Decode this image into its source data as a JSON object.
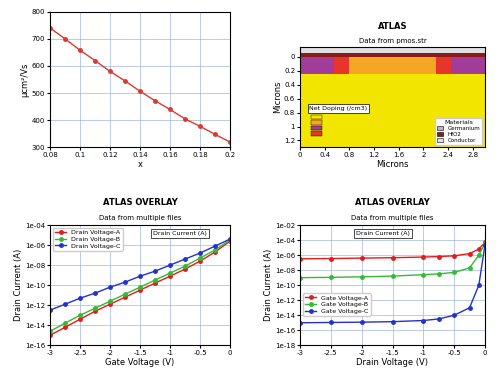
{
  "chart_data": [
    {
      "type": "line",
      "xlabel": "x",
      "ylabel": "μcm²/Vs",
      "x": [
        0.08,
        0.09,
        0.1,
        0.11,
        0.12,
        0.13,
        0.14,
        0.15,
        0.16,
        0.17,
        0.18,
        0.19,
        0.2
      ],
      "values": [
        740,
        700,
        658,
        620,
        580,
        545,
        507,
        472,
        440,
        405,
        378,
        348,
        320
      ],
      "color": "#d93a32",
      "marker": "o",
      "line_style": "solid",
      "xlim": [
        0.08,
        0.2
      ],
      "xticks": [
        0.08,
        0.1,
        0.12,
        0.14,
        0.16,
        0.18,
        0.2
      ],
      "ylim": [
        300,
        800
      ],
      "yticks": [
        300,
        400,
        500,
        600,
        700,
        800
      ],
      "grid": true
    },
    {
      "type": "structure",
      "title": "ATLAS",
      "subtitle": "Data from pmos.str",
      "xlabel": "Microns",
      "ylabel": "Microns",
      "xlim": [
        0,
        3
      ],
      "xticks": [
        0,
        0.4,
        0.8,
        1.2,
        1.6,
        2,
        2.4,
        2.8
      ],
      "ylim": [
        1.3,
        -0.15
      ],
      "yticks": [
        0,
        0.2,
        0.4,
        0.6,
        0.8,
        1,
        1.2
      ],
      "regions": [
        {
          "x": [
            0,
            3
          ],
          "y": [
            0.25,
            1.3
          ],
          "color": "#f2e600"
        },
        {
          "x": [
            0.8,
            2.2
          ],
          "y": [
            0,
            0.25
          ],
          "color": "#f5a623"
        },
        {
          "x": [
            0,
            0.55
          ],
          "y": [
            0,
            0.25
          ],
          "color": "#a23c9a"
        },
        {
          "x": [
            2.45,
            3
          ],
          "y": [
            0,
            0.25
          ],
          "color": "#a23c9a"
        },
        {
          "x": [
            0.55,
            0.8
          ],
          "y": [
            -0.03,
            0.25
          ],
          "color": "#e8352b"
        },
        {
          "x": [
            2.2,
            2.45
          ],
          "y": [
            -0.03,
            0.25
          ],
          "color": "#e8352b"
        },
        {
          "x": [
            0,
            3
          ],
          "y": [
            -0.06,
            0
          ],
          "color": "#8b1a1a"
        },
        {
          "x": [
            0,
            3
          ],
          "y": [
            -0.15,
            -0.06
          ],
          "color": "#e0e0e0"
        }
      ],
      "doping": {
        "title": "Net Doping (/cm3)"
      },
      "materials": {
        "title": "Materials",
        "entries": [
          {
            "name": "Germanium",
            "color": "#b8b8b8"
          },
          {
            "name": "HfO2",
            "color": "#8b1a1a"
          },
          {
            "name": "Conductor",
            "color": "#e0e0e0"
          }
        ]
      },
      "legend": "lower right",
      "grid": false
    },
    {
      "type": "line",
      "title": "ATLAS OVERLAY",
      "subtitle": "Data from multiple files",
      "xlabel": "Gate Voltage (V)",
      "ylabel": "Drain Current (A)",
      "annotation": "Drain Current (A)",
      "log": "y",
      "grid": true,
      "legend": "upper left",
      "line_style": "solid",
      "x": [
        -3,
        -2.75,
        -2.5,
        -2.25,
        -2,
        -1.75,
        -1.5,
        -1.25,
        -1,
        -0.75,
        -0.5,
        -0.25,
        0
      ],
      "series": [
        {
          "name": "Drain Voltage-A",
          "color": "#e41a1c",
          "marker": "o",
          "values": [
            1e-15,
            6.3e-15,
            4e-14,
            2.5e-13,
            1.26e-12,
            6.3e-12,
            3.2e-11,
            1.6e-10,
            7.9e-10,
            4e-09,
            2.5e-08,
            2e-07,
            2.5e-06
          ]
        },
        {
          "name": "Drain Voltage-B",
          "color": "#33bb33",
          "marker": "o",
          "values": [
            2.5e-15,
            1.6e-14,
            1e-13,
            5e-13,
            2.5e-12,
            1.26e-11,
            6.3e-11,
            3.2e-10,
            1.6e-09,
            7.9e-09,
            5e-08,
            3.2e-07,
            3.2e-06
          ]
        },
        {
          "name": "Drain Voltage-C",
          "color": "#2233cc",
          "marker": "o",
          "values": [
            3.2e-13,
            1.26e-12,
            5e-12,
            1.6e-11,
            6.3e-11,
            2e-10,
            7.9e-10,
            2.5e-09,
            1e-08,
            4e-08,
            1.6e-07,
            7.9e-07,
            4e-06
          ]
        }
      ],
      "xlim": [
        -3,
        0
      ],
      "xticks": [
        -3,
        -2.5,
        -2,
        -1.5,
        -1,
        -0.5,
        0
      ],
      "ylim": [
        1e-16,
        0.0001
      ],
      "yticks": [
        {
          "value": 1e-16,
          "label": "1e-16"
        },
        {
          "value": 1e-14,
          "label": "1e-14"
        },
        {
          "value": 1e-12,
          "label": "1e-12"
        },
        {
          "value": 1e-10,
          "label": "1e-10"
        },
        {
          "value": 1e-08,
          "label": "1e-08"
        },
        {
          "value": 1e-06,
          "label": "1e-06"
        },
        {
          "value": 0.0001,
          "label": "1e-04"
        }
      ]
    },
    {
      "type": "line",
      "title": "ATLAS OVERLAY",
      "subtitle": "Data from multiple files",
      "xlabel": "Drain Voltage (V)",
      "ylabel": "Drain Current (A)",
      "annotation": "Drain Current (A)",
      "log": "y",
      "grid": true,
      "legend": "lower left",
      "line_style": "solid",
      "x": [
        -3,
        -2.5,
        -2,
        -1.5,
        -1,
        -0.75,
        -0.5,
        -0.25,
        -0.1,
        0
      ],
      "series": [
        {
          "name": "Gate Voltage-A",
          "color": "#e41a1c",
          "marker": "o",
          "values": [
            3.2e-07,
            3.5e-07,
            4e-07,
            4.5e-07,
            5.5e-07,
            6.5e-07,
            8e-07,
            1.6e-06,
            6.3e-06,
            5e-05
          ]
        },
        {
          "name": "Gate Voltage-B",
          "color": "#33bb33",
          "marker": "o",
          "values": [
            1e-09,
            1.1e-09,
            1.3e-09,
            1.6e-09,
            2.5e-09,
            3.2e-09,
            5e-09,
            2e-08,
            1e-06,
            4e-05
          ]
        },
        {
          "name": "Gate Voltage-C",
          "color": "#2233cc",
          "marker": "o",
          "values": [
            1e-15,
            1.1e-15,
            1.2e-15,
            1.4e-15,
            2e-15,
            3.2e-15,
            1e-14,
            1e-13,
            1e-10,
            2.5e-05
          ]
        }
      ],
      "xlim": [
        -3,
        0
      ],
      "xticks": [
        -3,
        -2.5,
        -2,
        -1.5,
        -1,
        -0.5,
        0
      ],
      "ylim": [
        1e-18,
        0.01
      ],
      "yticks": [
        {
          "value": 1e-18,
          "label": "1e-18"
        },
        {
          "value": 1e-16,
          "label": "1e-16"
        },
        {
          "value": 1e-14,
          "label": "1e-14"
        },
        {
          "value": 1e-12,
          "label": "1e-12"
        },
        {
          "value": 1e-10,
          "label": "1e-10"
        },
        {
          "value": 1e-08,
          "label": "1e-08"
        },
        {
          "value": 1e-06,
          "label": "1e-06"
        },
        {
          "value": 0.0001,
          "label": "1e-04"
        },
        {
          "value": 0.01,
          "label": "1e-02"
        }
      ]
    }
  ]
}
